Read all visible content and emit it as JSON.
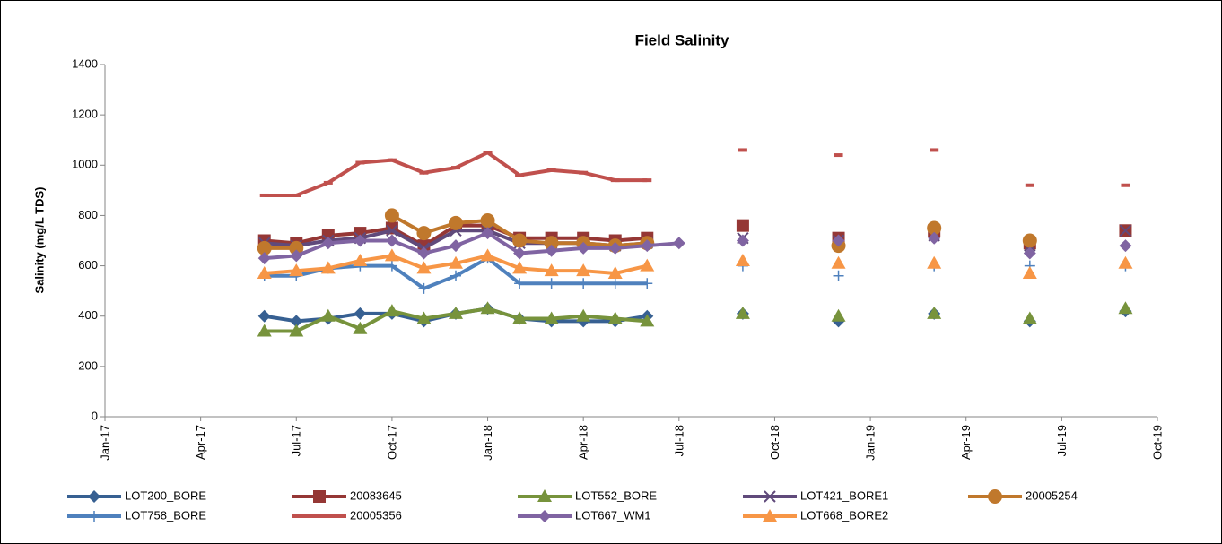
{
  "chart_data": {
    "type": "line",
    "title": "Field Salinity",
    "y_label": "Salinity (mg/L TDS)",
    "x": [
      "Jun-17",
      "Jul-17",
      "Aug-17",
      "Sep-17",
      "Oct-17",
      "Nov-17",
      "Dec-17",
      "Jan-18",
      "Feb-18",
      "Mar-18",
      "Apr-18",
      "May-18",
      "Jun-18",
      "Jul-18",
      "Aug-18",
      "Sep-18",
      "Oct-18",
      "Nov-18",
      "Dec-18",
      "Jan-19",
      "Feb-19",
      "Mar-19",
      "Apr-19",
      "May-19",
      "Jun-19",
      "Jul-19",
      "Aug-19",
      "Sep-19"
    ],
    "xlim": [
      "Jan-17",
      "Oct-19"
    ],
    "xticks": [
      "Jan-17",
      "Apr-17",
      "Jul-17",
      "Oct-17",
      "Jan-18",
      "Apr-18",
      "Jul-18",
      "Oct-18",
      "Jan-19",
      "Apr-19",
      "Jul-19",
      "Oct-19"
    ],
    "ylim": [
      0,
      1400
    ],
    "yticks": [
      0,
      200,
      400,
      600,
      800,
      1000,
      1200,
      1400
    ],
    "legend": "bottom",
    "series": [
      {
        "name": "LOT200_BORE",
        "color": "#376092",
        "marker": "diamond",
        "values": [
          400,
          380,
          390,
          410,
          410,
          380,
          410,
          430,
          390,
          380,
          380,
          380,
          400,
          null,
          null,
          410,
          null,
          null,
          380,
          null,
          null,
          410,
          null,
          null,
          380,
          null,
          null,
          420
        ]
      },
      {
        "name": "20083645",
        "color": "#953735",
        "marker": "square",
        "values": [
          700,
          690,
          720,
          730,
          750,
          680,
          760,
          760,
          710,
          710,
          710,
          700,
          710,
          null,
          null,
          760,
          null,
          null,
          710,
          null,
          null,
          740,
          null,
          null,
          690,
          null,
          null,
          740
        ]
      },
      {
        "name": "LOT552_BORE",
        "color": "#77933c",
        "marker": "triangle",
        "values": [
          340,
          340,
          400,
          350,
          420,
          390,
          410,
          430,
          390,
          390,
          400,
          390,
          380,
          null,
          null,
          410,
          null,
          null,
          400,
          null,
          null,
          410,
          null,
          null,
          390,
          null,
          null,
          430
        ]
      },
      {
        "name": "LOT421_BORE1",
        "color": "#604a7b",
        "marker": "x",
        "values": [
          690,
          680,
          700,
          710,
          740,
          670,
          740,
          740,
          690,
          690,
          690,
          680,
          690,
          null,
          null,
          710,
          null,
          null,
          700,
          null,
          null,
          720,
          null,
          null,
          680,
          null,
          null,
          740
        ]
      },
      {
        "name": "20005254",
        "color": "#c0782c",
        "marker": "circle",
        "values": [
          670,
          670,
          null,
          null,
          800,
          730,
          770,
          780,
          700,
          690,
          690,
          680,
          690,
          null,
          null,
          null,
          null,
          null,
          680,
          null,
          null,
          750,
          null,
          null,
          700,
          null,
          null,
          null
        ]
      },
      {
        "name": "LOT758_BORE",
        "color": "#4f81bd",
        "marker": "plus",
        "values": [
          560,
          560,
          590,
          600,
          600,
          510,
          560,
          630,
          530,
          530,
          530,
          530,
          530,
          null,
          null,
          600,
          null,
          null,
          560,
          null,
          null,
          600,
          null,
          null,
          600,
          null,
          null,
          600
        ]
      },
      {
        "name": "20005356",
        "color": "#c0504d",
        "marker": "dash",
        "values": [
          880,
          880,
          930,
          1010,
          1020,
          970,
          990,
          1050,
          960,
          980,
          970,
          940,
          940,
          null,
          null,
          1060,
          null,
          null,
          1040,
          null,
          null,
          1060,
          null,
          null,
          920,
          null,
          null,
          920
        ]
      },
      {
        "name": "LOT667_WM1",
        "color": "#8064a2",
        "marker": "diamond",
        "values": [
          630,
          640,
          690,
          700,
          700,
          650,
          680,
          730,
          650,
          660,
          670,
          670,
          680,
          690,
          null,
          700,
          null,
          null,
          700,
          null,
          null,
          710,
          null,
          null,
          650,
          null,
          null,
          680
        ]
      },
      {
        "name": "LOT668_BORE2",
        "color": "#f79646",
        "marker": "triangle",
        "values": [
          570,
          580,
          590,
          620,
          640,
          590,
          610,
          640,
          590,
          580,
          580,
          570,
          600,
          null,
          null,
          620,
          null,
          null,
          610,
          null,
          null,
          610,
          null,
          null,
          570,
          null,
          null,
          610
        ]
      }
    ]
  }
}
